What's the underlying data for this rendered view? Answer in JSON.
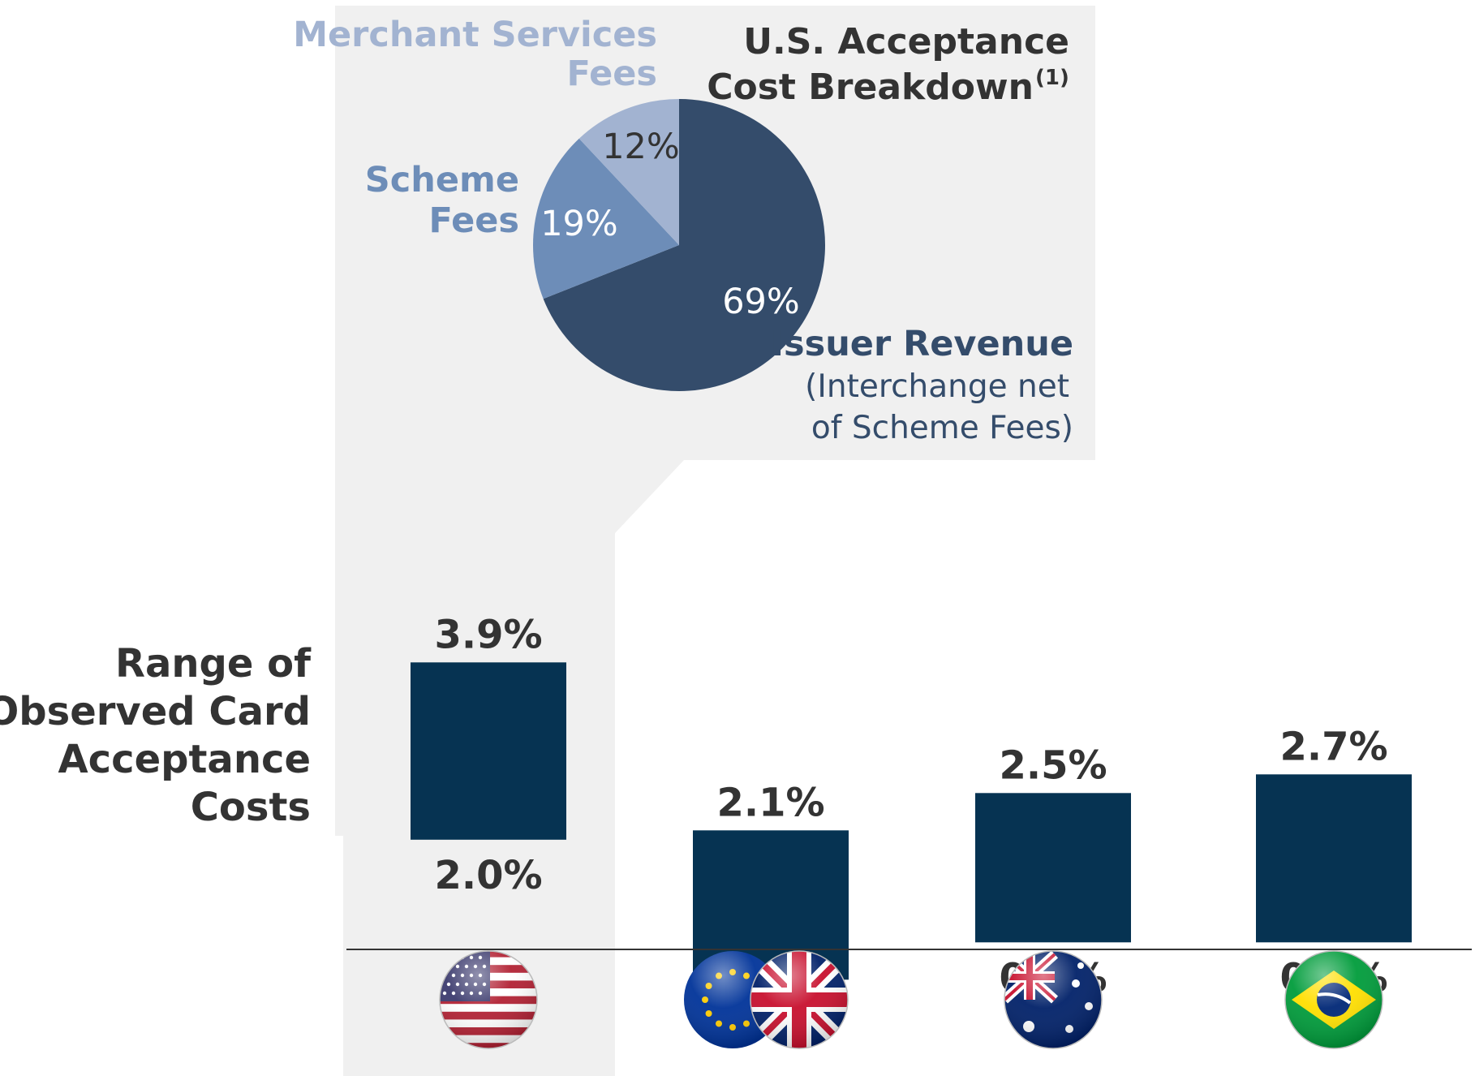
{
  "chart_data": [
    {
      "type": "pie",
      "title_lines": [
        "U.S. Acceptance",
        "Cost Breakdown"
      ],
      "title_superscript": "(1)",
      "slices": [
        {
          "label": "Issuer Revenue",
          "sublabel_lines": [
            "(Interchange net",
            "of Scheme Fees)"
          ],
          "value": 69,
          "value_label": "69%",
          "color": "#344c6b"
        },
        {
          "label_lines": [
            "Scheme",
            "Fees"
          ],
          "value": 19,
          "value_label": "19%",
          "color": "#6d8db8"
        },
        {
          "label_lines": [
            "Merchant Services",
            "Fees"
          ],
          "value": 12,
          "value_label": "12%",
          "color": "#a2b3d1"
        }
      ]
    },
    {
      "type": "bar",
      "subtype": "floating-range",
      "ylabel_lines": [
        "Range of",
        "Observed Card",
        "Acceptance",
        "Costs"
      ],
      "categories": [
        "United States",
        "EU / UK",
        "Australia",
        "Brazil"
      ],
      "category_icons": [
        "us-flag-icon",
        "eu-uk-flag-icon",
        "australia-flag-icon",
        "brazil-flag-icon"
      ],
      "low": [
        2.0,
        0.5,
        0.9,
        0.9
      ],
      "high": [
        3.9,
        2.1,
        2.5,
        2.7
      ],
      "low_labels": [
        "2.0%",
        "0.5%",
        "0.9%",
        "0.9%"
      ],
      "high_labels": [
        "3.9%",
        "2.1%",
        "2.5%",
        "2.7%"
      ],
      "bar_color": "#063352",
      "ylim": [
        0.25,
        4.0
      ],
      "grid": false
    }
  ]
}
